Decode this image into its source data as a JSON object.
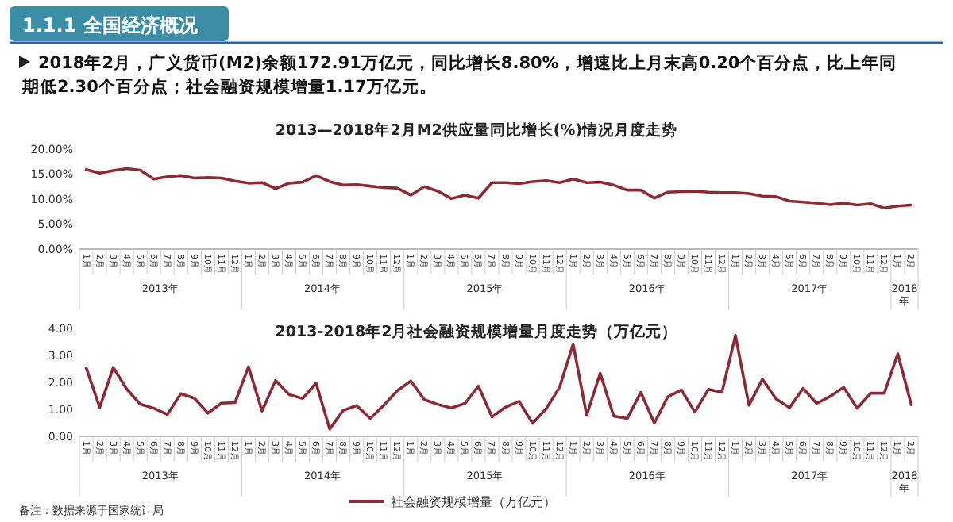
{
  "chart_data": [
    {
      "type": "other",
      "title": "1.1.1 全国经济概况",
      "annotations": [
        "2018年2月，广义货币(M2)余额172.91万亿元，同比增长8.80%，增速比上月末高0.20个百分点，比上年同期低2.30个百分点；社会融资规模增量1.17万亿元。"
      ]
    },
    {
      "type": "line",
      "title": "2013—2018年2月M2供应量同比增长(%)情况月度走势",
      "categories": [
        "1月",
        "2月",
        "3月",
        "4月",
        "5月",
        "6月",
        "7月",
        "8月",
        "9月",
        "10月",
        "11月",
        "12月",
        "1月",
        "2月",
        "3月",
        "4月",
        "5月",
        "6月",
        "7月",
        "8月",
        "9月",
        "10月",
        "11月",
        "12月",
        "1月",
        "2月",
        "3月",
        "4月",
        "5月",
        "6月",
        "7月",
        "8月",
        "9月",
        "10月",
        "11月",
        "12月",
        "1月",
        "2月",
        "3月",
        "4月",
        "5月",
        "6月",
        "7月",
        "8月",
        "9月",
        "10月",
        "11月",
        "12月",
        "1月",
        "2月",
        "3月",
        "4月",
        "5月",
        "6月",
        "7月",
        "8月",
        "9月",
        "10月",
        "11月",
        "12月",
        "1月",
        "2月"
      ],
      "series": [
        {
          "color": "#8c2b36",
          "values": [
            15.9,
            15.2,
            15.7,
            16.1,
            15.8,
            14.0,
            14.5,
            14.7,
            14.2,
            14.3,
            14.2,
            13.6,
            13.2,
            13.3,
            12.1,
            13.2,
            13.4,
            14.7,
            13.5,
            12.8,
            12.9,
            12.6,
            12.3,
            12.2,
            10.8,
            12.5,
            11.6,
            10.1,
            10.8,
            10.2,
            13.3,
            13.3,
            13.1,
            13.5,
            13.7,
            13.3,
            14.0,
            13.3,
            13.4,
            12.8,
            11.8,
            11.8,
            10.2,
            11.4,
            11.5,
            11.6,
            11.4,
            11.3,
            11.3,
            11.1,
            10.6,
            10.5,
            9.6,
            9.4,
            9.2,
            8.9,
            9.2,
            8.8,
            9.1,
            8.2,
            8.6,
            8.8
          ]
        }
      ],
      "ylim": [
        0,
        20
      ],
      "yticks": [
        {
          "value": 0,
          "label": "0.00%"
        },
        {
          "value": 5,
          "label": "5.00%"
        },
        {
          "value": 10,
          "label": "10.00%"
        },
        {
          "value": 15,
          "label": "15.00%"
        },
        {
          "value": 20,
          "label": "20.00%"
        }
      ],
      "annotations": [
        "2013年",
        "2014年",
        "2015年",
        "2016年",
        "2017年",
        "2018年"
      ]
    },
    {
      "type": "line",
      "title": "2013-2018年2月社会融资规模增量月度走势（万亿元）",
      "categories": [
        "1月",
        "2月",
        "3月",
        "4月",
        "5月",
        "6月",
        "7月",
        "8月",
        "9月",
        "10月",
        "11月",
        "12月",
        "1月",
        "2月",
        "3月",
        "4月",
        "5月",
        "6月",
        "7月",
        "8月",
        "9月",
        "10月",
        "11月",
        "12月",
        "1月",
        "2月",
        "3月",
        "4月",
        "5月",
        "6月",
        "7月",
        "8月",
        "9月",
        "10月",
        "11月",
        "12月",
        "1月",
        "2月",
        "3月",
        "4月",
        "5月",
        "6月",
        "7月",
        "8月",
        "9月",
        "10月",
        "11月",
        "12月",
        "1月",
        "2月",
        "3月",
        "4月",
        "5月",
        "6月",
        "7月",
        "8月",
        "9月",
        "10月",
        "11月",
        "12月",
        "1月",
        "2月"
      ],
      "series": [
        {
          "name": "社会融资规模增量（万亿元）",
          "color": "#8c2b36",
          "values": [
            2.54,
            1.07,
            2.55,
            1.75,
            1.19,
            1.04,
            0.81,
            1.58,
            1.41,
            0.86,
            1.23,
            1.25,
            2.58,
            0.94,
            2.07,
            1.55,
            1.4,
            1.97,
            0.27,
            0.96,
            1.14,
            0.66,
            1.15,
            1.69,
            2.05,
            1.36,
            1.18,
            1.05,
            1.22,
            1.86,
            0.72,
            1.08,
            1.3,
            0.48,
            1.02,
            1.82,
            3.42,
            0.78,
            2.34,
            0.75,
            0.66,
            1.63,
            0.49,
            1.47,
            1.72,
            0.9,
            1.74,
            1.63,
            3.74,
            1.15,
            2.12,
            1.39,
            1.06,
            1.78,
            1.22,
            1.48,
            1.82,
            1.04,
            1.6,
            1.6,
            3.06,
            1.17
          ]
        }
      ],
      "ylim": [
        0,
        4
      ],
      "yticks": [
        {
          "value": 0,
          "label": "0.00"
        },
        {
          "value": 1,
          "label": "1.00"
        },
        {
          "value": 2,
          "label": "2.00"
        },
        {
          "value": 3,
          "label": "3.00"
        },
        {
          "value": 4,
          "label": "4.00"
        }
      ],
      "legend": "bottom",
      "annotations": [
        "2013年",
        "2014年",
        "2015年",
        "2016年",
        "2017年",
        "2018年",
        "备注：数据来源于国家统计局"
      ]
    }
  ]
}
